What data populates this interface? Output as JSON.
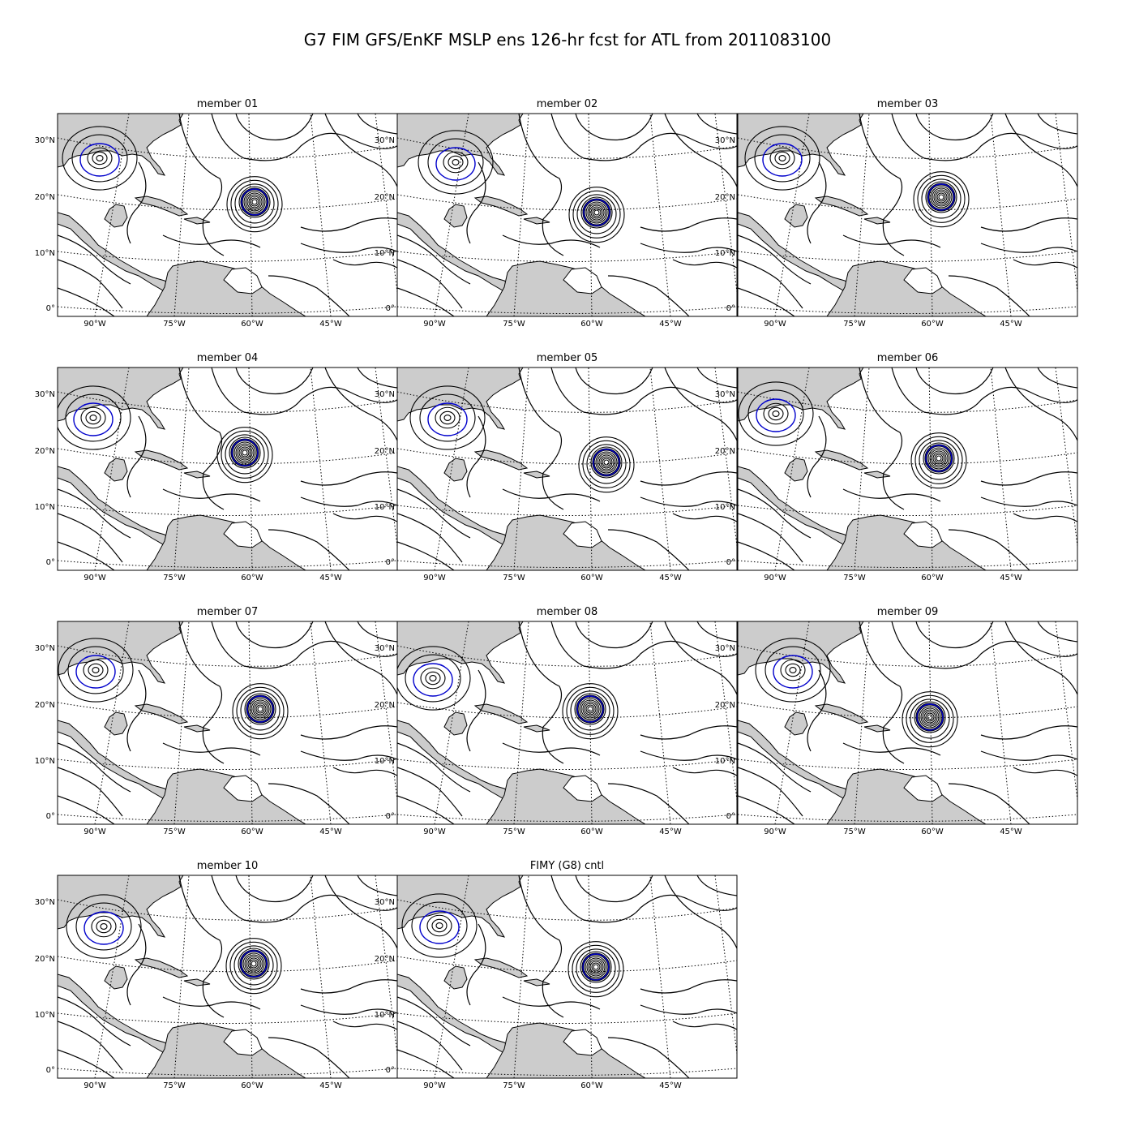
{
  "title": "G7 FIM GFS/EnKF MSLP ens 126-hr fcst for ATL from 2011083100",
  "panels": [
    {
      "title": "member 01"
    },
    {
      "title": "member 02"
    },
    {
      "title": "member 03"
    },
    {
      "title": "member 04"
    },
    {
      "title": "member 05"
    },
    {
      "title": "member 06"
    },
    {
      "title": "member 07"
    },
    {
      "title": "member 08"
    },
    {
      "title": "member 09"
    },
    {
      "title": "member 10"
    },
    {
      "title": "FIMY (G8) cntl"
    }
  ],
  "lat_labels": [
    "30°N",
    "20°N",
    "10°N",
    "0°"
  ],
  "lon_labels": [
    "90°W",
    "75°W",
    "60°W",
    "45°W"
  ]
}
